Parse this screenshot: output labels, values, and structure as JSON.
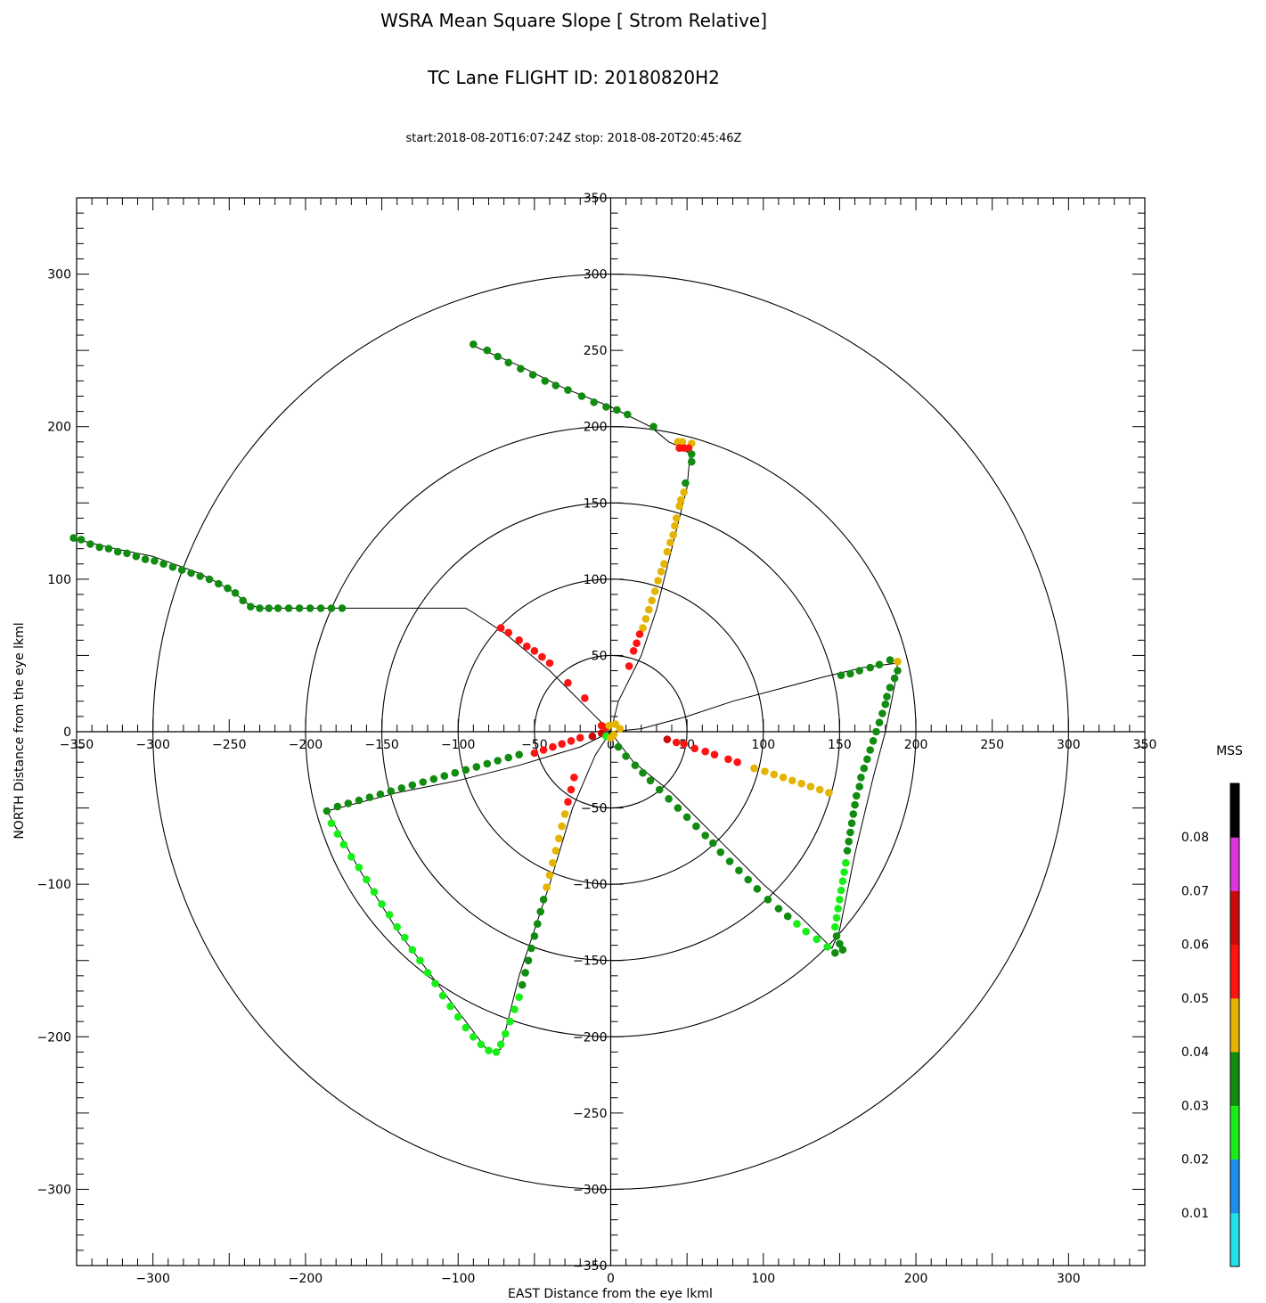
{
  "chart_data": {
    "type": "scatter",
    "title": "WSRA Mean Square Slope [ Strom Relative]",
    "subtitle": "TC Lane FLIGHT ID: 20180820H2",
    "time_range": "start:2018-08-20T16:07:24Z stop: 2018-08-20T20:45:46Z",
    "xlabel": "EAST Distance from the eye lkml",
    "ylabel": "NORTH Distance from the eye lkml",
    "xlim": [
      -350,
      350
    ],
    "ylim": [
      -350,
      350
    ],
    "range_rings_km": [
      50,
      100,
      150,
      200,
      300
    ],
    "bottom_ticks": [
      -300,
      -200,
      -100,
      0,
      100,
      200,
      300
    ],
    "left_ticks": [
      -300,
      -200,
      -100,
      0,
      100,
      200,
      300
    ],
    "center_x_ticks": [
      -350,
      -300,
      -250,
      -200,
      -150,
      -100,
      -50,
      0,
      50,
      100,
      150,
      200,
      250,
      300,
      350
    ],
    "center_y_ticks": [
      -350,
      -300,
      -250,
      -200,
      -150,
      -100,
      -50,
      50,
      100,
      150,
      200,
      250,
      300,
      350
    ],
    "colorbar": {
      "title": "MSS",
      "labels": [
        "0.08",
        "0.07",
        "0.06",
        "0.05",
        "0.04",
        "0.03",
        "0.02",
        "0.01"
      ],
      "segments": [
        "#22e0e8",
        "#1e8ff0",
        "#19ee19",
        "#118c11",
        "#e4b400",
        "#ff1212",
        "#c90a0a",
        "#dd33dd",
        "#000000"
      ]
    },
    "color_levels": {
      "g": "#19ee19",
      "d": "#118c11",
      "y": "#e4b400",
      "r": "#ff1212",
      "k": "#c90a0a"
    },
    "track": [
      [
        -350,
        126
      ],
      [
        -325,
        120
      ],
      [
        -300,
        115
      ],
      [
        -270,
        104
      ],
      [
        -258,
        98
      ],
      [
        -248,
        92
      ],
      [
        -238,
        84
      ],
      [
        -230,
        81
      ],
      [
        -200,
        81
      ],
      [
        -170,
        81
      ],
      [
        -95,
        81
      ],
      [
        -90,
        78
      ],
      [
        -70,
        65
      ],
      [
        -40,
        40
      ],
      [
        -15,
        15
      ],
      [
        -2,
        2
      ],
      [
        15,
        -20
      ],
      [
        40,
        -40
      ],
      [
        70,
        -70
      ],
      [
        100,
        -100
      ],
      [
        125,
        -122
      ],
      [
        145,
        -142
      ],
      [
        150,
        -130
      ],
      [
        160,
        -80
      ],
      [
        172,
        -30
      ],
      [
        180,
        0
      ],
      [
        186,
        30
      ],
      [
        188,
        45
      ],
      [
        165,
        42
      ],
      [
        140,
        36
      ],
      [
        110,
        28
      ],
      [
        80,
        20
      ],
      [
        50,
        10
      ],
      [
        20,
        2
      ],
      [
        0,
        0
      ],
      [
        -20,
        -10
      ],
      [
        -60,
        -22
      ],
      [
        -100,
        -32
      ],
      [
        -140,
        -40
      ],
      [
        -186,
        -52
      ],
      [
        -165,
        -90
      ],
      [
        -140,
        -130
      ],
      [
        -110,
        -170
      ],
      [
        -80,
        -210
      ],
      [
        -72,
        -208
      ],
      [
        -60,
        -160
      ],
      [
        -40,
        -100
      ],
      [
        -25,
        -50
      ],
      [
        -10,
        -15
      ],
      [
        0,
        0
      ],
      [
        5,
        20
      ],
      [
        20,
        50
      ],
      [
        30,
        80
      ],
      [
        40,
        120
      ],
      [
        50,
        160
      ],
      [
        52,
        182
      ],
      [
        45,
        187
      ],
      [
        38,
        190
      ],
      [
        26,
        200
      ],
      [
        0,
        213
      ],
      [
        -30,
        225
      ],
      [
        -60,
        240
      ],
      [
        -90,
        253
      ]
    ],
    "points": [
      [
        -352,
        127,
        "d"
      ],
      [
        -347,
        126,
        "d"
      ],
      [
        -341,
        123,
        "d"
      ],
      [
        -335,
        121,
        "d"
      ],
      [
        -329,
        120,
        "d"
      ],
      [
        -323,
        118,
        "d"
      ],
      [
        -317,
        117,
        "d"
      ],
      [
        -311,
        115,
        "d"
      ],
      [
        -305,
        113,
        "d"
      ],
      [
        -299,
        112,
        "d"
      ],
      [
        -293,
        110,
        "d"
      ],
      [
        -287,
        108,
        "d"
      ],
      [
        -281,
        106,
        "d"
      ],
      [
        -275,
        104,
        "d"
      ],
      [
        -269,
        102,
        "d"
      ],
      [
        -263,
        100,
        "d"
      ],
      [
        -257,
        97,
        "d"
      ],
      [
        -251,
        94,
        "d"
      ],
      [
        -246,
        91,
        "d"
      ],
      [
        -241,
        86,
        "d"
      ],
      [
        -236,
        82,
        "d"
      ],
      [
        -230,
        81,
        "d"
      ],
      [
        -224,
        81,
        "d"
      ],
      [
        -218,
        81,
        "d"
      ],
      [
        -211,
        81,
        "d"
      ],
      [
        -204,
        81,
        "d"
      ],
      [
        -197,
        81,
        "d"
      ],
      [
        -190,
        81,
        "d"
      ],
      [
        -183,
        81,
        "d"
      ],
      [
        -176,
        81,
        "d"
      ],
      [
        -72,
        68,
        "r"
      ],
      [
        -67,
        65,
        "r"
      ],
      [
        -60,
        60,
        "r"
      ],
      [
        -55,
        56,
        "r"
      ],
      [
        -50,
        53,
        "r"
      ],
      [
        -45,
        49,
        "r"
      ],
      [
        -40,
        45,
        "r"
      ],
      [
        -28,
        32,
        "r"
      ],
      [
        -17,
        22,
        "r"
      ],
      [
        -6,
        4,
        "r"
      ],
      [
        -3,
        3,
        "r"
      ],
      [
        -90,
        254,
        "d"
      ],
      [
        -81,
        250,
        "d"
      ],
      [
        -74,
        246,
        "d"
      ],
      [
        -67,
        242,
        "d"
      ],
      [
        -59,
        238,
        "d"
      ],
      [
        -51,
        234,
        "d"
      ],
      [
        -43,
        230,
        "d"
      ],
      [
        -36,
        227,
        "d"
      ],
      [
        -28,
        224,
        "d"
      ],
      [
        -19,
        220,
        "d"
      ],
      [
        -11,
        216,
        "d"
      ],
      [
        -3,
        213,
        "d"
      ],
      [
        4,
        211,
        "d"
      ],
      [
        11,
        208,
        "d"
      ],
      [
        28,
        200,
        "d"
      ],
      [
        44,
        190,
        "y"
      ],
      [
        47,
        190,
        "y"
      ],
      [
        53,
        189,
        "y"
      ],
      [
        45,
        186,
        "r"
      ],
      [
        48,
        186,
        "r"
      ],
      [
        51,
        186,
        "r"
      ],
      [
        53,
        182,
        "d"
      ],
      [
        53,
        177,
        "d"
      ],
      [
        49,
        163,
        "d"
      ],
      [
        48,
        157,
        "y"
      ],
      [
        46,
        152,
        "y"
      ],
      [
        45,
        148,
        "y"
      ],
      [
        43,
        140,
        "y"
      ],
      [
        42,
        135,
        "y"
      ],
      [
        41,
        129,
        "y"
      ],
      [
        39,
        124,
        "y"
      ],
      [
        37,
        118,
        "y"
      ],
      [
        35,
        110,
        "y"
      ],
      [
        33,
        105,
        "y"
      ],
      [
        31,
        99,
        "y"
      ],
      [
        29,
        92,
        "y"
      ],
      [
        27,
        86,
        "y"
      ],
      [
        25,
        80,
        "y"
      ],
      [
        23,
        74,
        "y"
      ],
      [
        21,
        68,
        "y"
      ],
      [
        19,
        64,
        "r"
      ],
      [
        17,
        58,
        "r"
      ],
      [
        15,
        53,
        "r"
      ],
      [
        12,
        43,
        "r"
      ],
      [
        183,
        47,
        "d"
      ],
      [
        176,
        44,
        "d"
      ],
      [
        170,
        42,
        "d"
      ],
      [
        163,
        40,
        "d"
      ],
      [
        157,
        38,
        "d"
      ],
      [
        151,
        37,
        "d"
      ],
      [
        188,
        46,
        "y"
      ],
      [
        188,
        40,
        "d"
      ],
      [
        186,
        35,
        "d"
      ],
      [
        183,
        29,
        "d"
      ],
      [
        181,
        23,
        "d"
      ],
      [
        180,
        18,
        "d"
      ],
      [
        178,
        12,
        "d"
      ],
      [
        176,
        6,
        "d"
      ],
      [
        174,
        0,
        "d"
      ],
      [
        172,
        -6,
        "d"
      ],
      [
        170,
        -12,
        "d"
      ],
      [
        168,
        -18,
        "d"
      ],
      [
        166,
        -24,
        "d"
      ],
      [
        164,
        -30,
        "d"
      ],
      [
        163,
        -36,
        "d"
      ],
      [
        161,
        -42,
        "d"
      ],
      [
        160,
        -48,
        "d"
      ],
      [
        159,
        -54,
        "d"
      ],
      [
        158,
        -60,
        "d"
      ],
      [
        157,
        -66,
        "d"
      ],
      [
        156,
        -72,
        "d"
      ],
      [
        155,
        -78,
        "d"
      ],
      [
        154,
        -86,
        "g"
      ],
      [
        153,
        -92,
        "g"
      ],
      [
        152,
        -98,
        "g"
      ],
      [
        151,
        -104,
        "g"
      ],
      [
        150,
        -110,
        "g"
      ],
      [
        149,
        -116,
        "g"
      ],
      [
        148,
        -122,
        "g"
      ],
      [
        147,
        -128,
        "g"
      ],
      [
        148,
        -134,
        "d"
      ],
      [
        150,
        -139,
        "d"
      ],
      [
        152,
        -143,
        "d"
      ],
      [
        147,
        -145,
        "d"
      ],
      [
        143,
        -40,
        "y"
      ],
      [
        137,
        -38,
        "y"
      ],
      [
        131,
        -36,
        "y"
      ],
      [
        125,
        -34,
        "y"
      ],
      [
        119,
        -32,
        "y"
      ],
      [
        113,
        -30,
        "y"
      ],
      [
        107,
        -28,
        "y"
      ],
      [
        101,
        -26,
        "y"
      ],
      [
        94,
        -24,
        "y"
      ],
      [
        83,
        -20,
        "r"
      ],
      [
        77,
        -18,
        "r"
      ],
      [
        68,
        -15,
        "r"
      ],
      [
        62,
        -13,
        "r"
      ],
      [
        55,
        -11,
        "r"
      ],
      [
        48,
        -8,
        "r"
      ],
      [
        43,
        -7,
        "r"
      ],
      [
        37,
        -5,
        "k"
      ],
      [
        142,
        -141,
        "g"
      ],
      [
        135,
        -136,
        "g"
      ],
      [
        128,
        -131,
        "g"
      ],
      [
        122,
        -126,
        "g"
      ],
      [
        116,
        -121,
        "d"
      ],
      [
        110,
        -116,
        "d"
      ],
      [
        103,
        -110,
        "d"
      ],
      [
        96,
        -103,
        "d"
      ],
      [
        90,
        -97,
        "d"
      ],
      [
        84,
        -91,
        "d"
      ],
      [
        78,
        -85,
        "d"
      ],
      [
        72,
        -79,
        "d"
      ],
      [
        67,
        -73,
        "d"
      ],
      [
        62,
        -68,
        "d"
      ],
      [
        56,
        -62,
        "d"
      ],
      [
        50,
        -56,
        "d"
      ],
      [
        44,
        -50,
        "d"
      ],
      [
        38,
        -44,
        "d"
      ],
      [
        32,
        -38,
        "d"
      ],
      [
        26,
        -32,
        "d"
      ],
      [
        21,
        -27,
        "d"
      ],
      [
        16,
        -22,
        "d"
      ],
      [
        10,
        -16,
        "d"
      ],
      [
        5,
        -10,
        "d"
      ],
      [
        -186,
        -52,
        "d"
      ],
      [
        -179,
        -49,
        "d"
      ],
      [
        -172,
        -47,
        "d"
      ],
      [
        -165,
        -45,
        "d"
      ],
      [
        -158,
        -43,
        "d"
      ],
      [
        -151,
        -41,
        "d"
      ],
      [
        -144,
        -39,
        "d"
      ],
      [
        -137,
        -37,
        "d"
      ],
      [
        -130,
        -35,
        "d"
      ],
      [
        -123,
        -33,
        "d"
      ],
      [
        -116,
        -31,
        "d"
      ],
      [
        -109,
        -29,
        "d"
      ],
      [
        -102,
        -27,
        "d"
      ],
      [
        -95,
        -25,
        "d"
      ],
      [
        -88,
        -23,
        "d"
      ],
      [
        -81,
        -21,
        "d"
      ],
      [
        -74,
        -19,
        "d"
      ],
      [
        -67,
        -17,
        "d"
      ],
      [
        -60,
        -15,
        "d"
      ],
      [
        -50,
        -14,
        "r"
      ],
      [
        -44,
        -12,
        "r"
      ],
      [
        -38,
        -10,
        "r"
      ],
      [
        -32,
        -8,
        "r"
      ],
      [
        -26,
        -6,
        "r"
      ],
      [
        -20,
        -4,
        "r"
      ],
      [
        -12,
        -3,
        "k"
      ],
      [
        -6,
        -1,
        "k"
      ],
      [
        -183,
        -60,
        "g"
      ],
      [
        -179,
        -67,
        "g"
      ],
      [
        -175,
        -74,
        "g"
      ],
      [
        -170,
        -82,
        "g"
      ],
      [
        -165,
        -89,
        "g"
      ],
      [
        -160,
        -97,
        "g"
      ],
      [
        -155,
        -105,
        "g"
      ],
      [
        -150,
        -113,
        "g"
      ],
      [
        -145,
        -120,
        "g"
      ],
      [
        -140,
        -128,
        "g"
      ],
      [
        -135,
        -135,
        "g"
      ],
      [
        -130,
        -143,
        "g"
      ],
      [
        -125,
        -150,
        "g"
      ],
      [
        -120,
        -158,
        "g"
      ],
      [
        -115,
        -165,
        "g"
      ],
      [
        -110,
        -173,
        "g"
      ],
      [
        -105,
        -180,
        "g"
      ],
      [
        -100,
        -187,
        "g"
      ],
      [
        -95,
        -194,
        "g"
      ],
      [
        -90,
        -200,
        "g"
      ],
      [
        -85,
        -205,
        "g"
      ],
      [
        -80,
        -209,
        "g"
      ],
      [
        -75,
        -210,
        "g"
      ],
      [
        -72,
        -205,
        "g"
      ],
      [
        -69,
        -198,
        "g"
      ],
      [
        -66,
        -190,
        "g"
      ],
      [
        -63,
        -182,
        "g"
      ],
      [
        -60,
        -174,
        "g"
      ],
      [
        -58,
        -166,
        "d"
      ],
      [
        -56,
        -158,
        "d"
      ],
      [
        -54,
        -150,
        "d"
      ],
      [
        -52,
        -142,
        "d"
      ],
      [
        -50,
        -134,
        "d"
      ],
      [
        -48,
        -126,
        "d"
      ],
      [
        -46,
        -118,
        "d"
      ],
      [
        -44,
        -110,
        "d"
      ],
      [
        -42,
        -102,
        "y"
      ],
      [
        -40,
        -94,
        "y"
      ],
      [
        -38,
        -86,
        "y"
      ],
      [
        -36,
        -78,
        "y"
      ],
      [
        -34,
        -70,
        "y"
      ],
      [
        -32,
        -62,
        "y"
      ],
      [
        -30,
        -54,
        "y"
      ],
      [
        -28,
        -46,
        "r"
      ],
      [
        -26,
        -38,
        "r"
      ],
      [
        -24,
        -30,
        "r"
      ],
      [
        -3,
        -3,
        "g"
      ],
      [
        2,
        -2,
        "y"
      ],
      [
        6,
        2,
        "y"
      ],
      [
        3,
        5,
        "y"
      ],
      [
        -1,
        4,
        "y"
      ],
      [
        0,
        -4,
        "y"
      ]
    ]
  }
}
